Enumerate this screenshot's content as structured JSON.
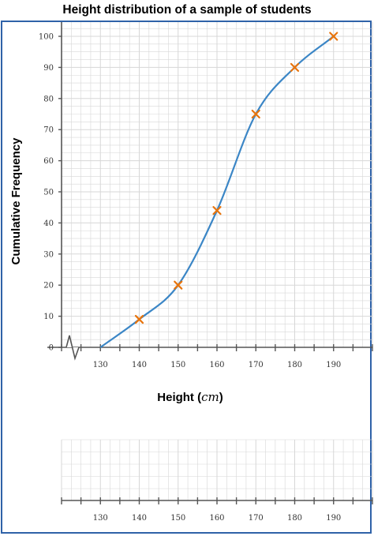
{
  "chart_data": {
    "type": "line",
    "title": "Height distribution of a sample of students",
    "xlabel": "Height",
    "xlabel_unit": "cm",
    "ylabel": "Cumulative Frequency",
    "x_ticks": [
      130,
      140,
      150,
      160,
      170,
      180,
      190
    ],
    "y_ticks": [
      0,
      10,
      20,
      30,
      40,
      50,
      60,
      70,
      80,
      90,
      100
    ],
    "xlim": [
      120,
      200
    ],
    "ylim": [
      0,
      100
    ],
    "grid": true,
    "x_axis_break": true,
    "series": [
      {
        "x": [
          130,
          140,
          150,
          160,
          170,
          180,
          190
        ],
        "y": [
          0,
          9,
          20,
          44,
          75,
          90,
          100
        ]
      }
    ],
    "markers": {
      "x": [
        140,
        150,
        160,
        170,
        180,
        190
      ],
      "y": [
        9,
        20,
        44,
        75,
        90,
        100
      ]
    },
    "colors": {
      "curve": "#3b86c6",
      "marker": "#e8740c",
      "frame": "#2f62a8",
      "grid": "#d7d7d7"
    }
  },
  "lower_axis": {
    "x_ticks": [
      130,
      140,
      150,
      160,
      170,
      180,
      190
    ]
  }
}
